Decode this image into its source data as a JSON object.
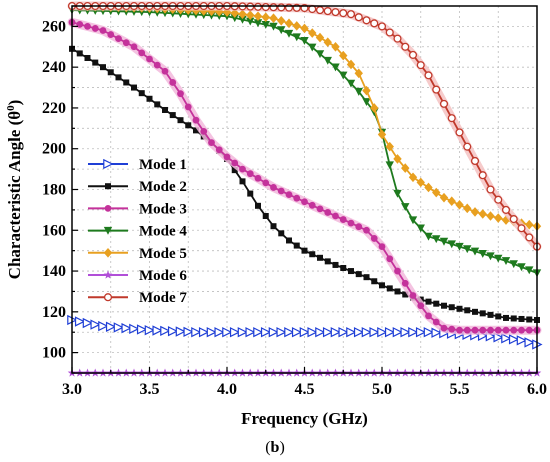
{
  "chart_data": {
    "type": "line",
    "xlabel": "Frequency (GHz)",
    "ylabel": "Characteristic Angle (θ⁰)",
    "ylabel_parts": {
      "main": "Characteristic Angle (θ",
      "sup": "0",
      "tail": ")"
    },
    "xlim": [
      3.0,
      6.0
    ],
    "ylim": [
      90,
      270
    ],
    "xticks": [
      "3.0",
      "3.5",
      "4.0",
      "4.5",
      "5.0",
      "5.5",
      "6.0"
    ],
    "yticks": [
      "100",
      "120",
      "140",
      "160",
      "180",
      "200",
      "220",
      "240",
      "260"
    ],
    "grid": true,
    "legend_position": "middle-left",
    "series": [
      {
        "name": "Mode 1",
        "color": "#1f3fd6",
        "marker": "triangle-right-open",
        "points": [
          [
            3.0,
            116
          ],
          [
            3.2,
            113
          ],
          [
            3.5,
            111
          ],
          [
            3.8,
            110
          ],
          [
            4.0,
            110
          ],
          [
            4.5,
            110
          ],
          [
            5.0,
            110
          ],
          [
            5.3,
            110
          ],
          [
            5.5,
            109
          ],
          [
            5.7,
            108
          ],
          [
            5.9,
            106
          ],
          [
            6.0,
            104
          ]
        ]
      },
      {
        "name": "Mode 2",
        "color": "#111111",
        "marker": "square",
        "points": [
          [
            3.0,
            249
          ],
          [
            3.2,
            240
          ],
          [
            3.4,
            230
          ],
          [
            3.6,
            219
          ],
          [
            3.8,
            209
          ],
          [
            3.9,
            203
          ],
          [
            4.0,
            195
          ],
          [
            4.1,
            184
          ],
          [
            4.2,
            172
          ],
          [
            4.3,
            162
          ],
          [
            4.4,
            155
          ],
          [
            4.5,
            150
          ],
          [
            4.7,
            143
          ],
          [
            4.9,
            137
          ],
          [
            5.0,
            133
          ],
          [
            5.2,
            127
          ],
          [
            5.4,
            123
          ],
          [
            5.6,
            120
          ],
          [
            5.8,
            117
          ],
          [
            6.0,
            116
          ]
        ]
      },
      {
        "name": "Mode 3",
        "color": "#c4329b",
        "marker": "circle",
        "halo": "#f2b8dc",
        "points": [
          [
            3.0,
            262
          ],
          [
            3.2,
            258
          ],
          [
            3.4,
            250
          ],
          [
            3.6,
            238
          ],
          [
            3.7,
            227
          ],
          [
            3.8,
            214
          ],
          [
            3.9,
            203
          ],
          [
            4.0,
            196
          ],
          [
            4.1,
            190
          ],
          [
            4.3,
            181
          ],
          [
            4.5,
            174
          ],
          [
            4.7,
            167
          ],
          [
            4.9,
            160
          ],
          [
            5.0,
            152
          ],
          [
            5.1,
            140
          ],
          [
            5.2,
            128
          ],
          [
            5.3,
            118
          ],
          [
            5.4,
            112
          ],
          [
            5.5,
            111
          ],
          [
            6.0,
            111
          ]
        ]
      },
      {
        "name": "Mode 4",
        "color": "#1e7a1e",
        "marker": "triangle-down",
        "points": [
          [
            3.0,
            268
          ],
          [
            3.5,
            267
          ],
          [
            4.0,
            265
          ],
          [
            4.3,
            260
          ],
          [
            4.5,
            253
          ],
          [
            4.7,
            240
          ],
          [
            4.85,
            228
          ],
          [
            4.95,
            218
          ],
          [
            5.0,
            208
          ],
          [
            5.05,
            192
          ],
          [
            5.1,
            178
          ],
          [
            5.2,
            165
          ],
          [
            5.3,
            157
          ],
          [
            5.5,
            152
          ],
          [
            5.8,
            145
          ],
          [
            6.0,
            139
          ]
        ]
      },
      {
        "name": "Mode 5",
        "color": "#e8a020",
        "marker": "diamond",
        "points": [
          [
            3.0,
            270
          ],
          [
            3.5,
            269
          ],
          [
            4.0,
            267
          ],
          [
            4.3,
            264
          ],
          [
            4.5,
            259
          ],
          [
            4.7,
            250
          ],
          [
            4.85,
            237
          ],
          [
            4.95,
            220
          ],
          [
            5.0,
            207
          ],
          [
            5.1,
            195
          ],
          [
            5.2,
            186
          ],
          [
            5.4,
            176
          ],
          [
            5.6,
            169
          ],
          [
            5.8,
            165
          ],
          [
            6.0,
            162
          ]
        ]
      },
      {
        "name": "Mode 6",
        "color": "#b14fd8",
        "marker": "star",
        "points": [
          [
            3.0,
            90
          ],
          [
            4.0,
            90
          ],
          [
            5.0,
            90
          ],
          [
            6.0,
            90
          ]
        ]
      },
      {
        "name": "Mode 7",
        "color": "#c0392b",
        "marker": "circle-open",
        "halo": "#f4c2c2",
        "points": [
          [
            3.0,
            270
          ],
          [
            3.5,
            270
          ],
          [
            4.0,
            270
          ],
          [
            4.5,
            269
          ],
          [
            4.8,
            266
          ],
          [
            5.0,
            260
          ],
          [
            5.1,
            254
          ],
          [
            5.2,
            246
          ],
          [
            5.3,
            236
          ],
          [
            5.4,
            222
          ],
          [
            5.5,
            208
          ],
          [
            5.6,
            194
          ],
          [
            5.7,
            180
          ],
          [
            5.8,
            170
          ],
          [
            5.9,
            161
          ],
          [
            6.0,
            152
          ]
        ]
      }
    ]
  },
  "caption": {
    "open": "(",
    "letter": "b",
    "close": ")"
  }
}
